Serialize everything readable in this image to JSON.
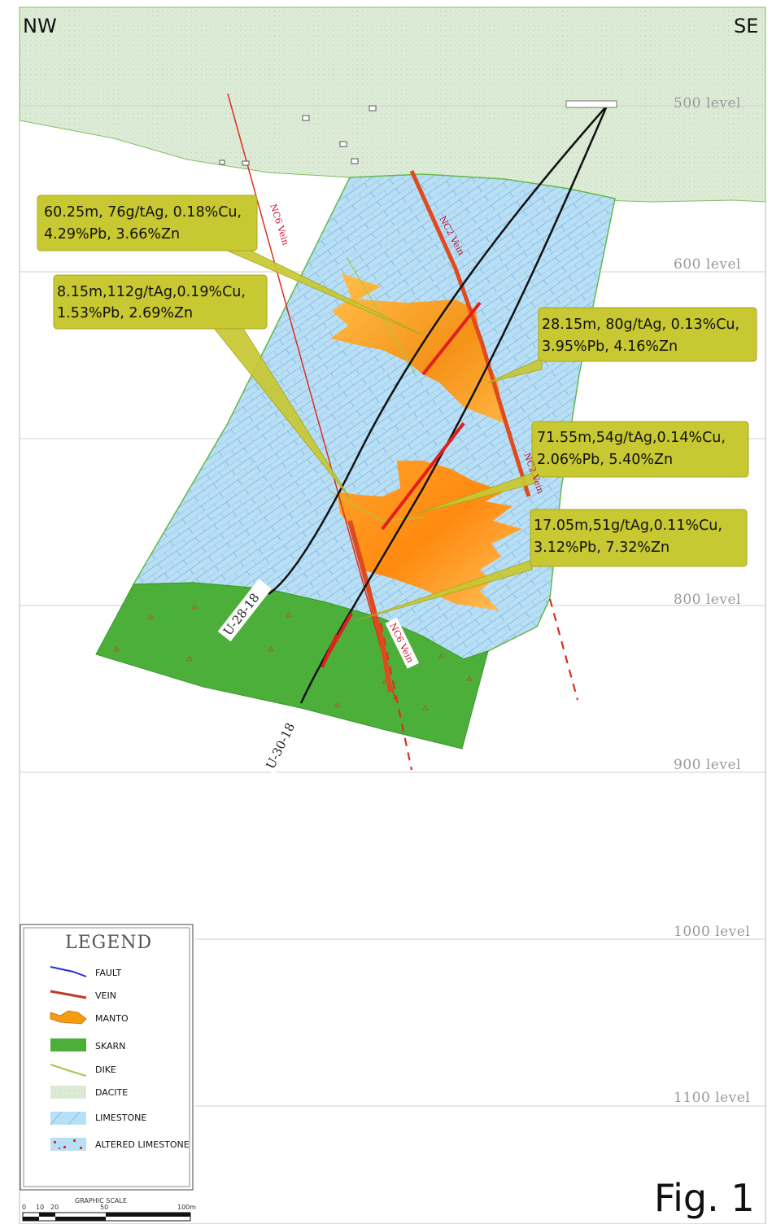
{
  "corners": {
    "left": "NW",
    "right": "SE"
  },
  "levels": [
    "500 level",
    "600 level",
    "800 level",
    "900 level",
    "1000 level",
    "1100 level"
  ],
  "veins": {
    "nc6": "NC6 Vein",
    "nc2": "NC2 Vein"
  },
  "drillholes": [
    "U-28-18",
    "U-30-18"
  ],
  "annotations": [
    {
      "line1": "60.25m, 76g/tAg, 0.18%Cu,",
      "line2": "4.29%Pb, 3.66%Zn"
    },
    {
      "line1": "8.15m,112g/tAg,0.19%Cu,",
      "line2": "1.53%Pb, 2.69%Zn"
    },
    {
      "line1": "28.15m, 80g/tAg, 0.13%Cu,",
      "line2": "3.95%Pb, 4.16%Zn"
    },
    {
      "line1": "71.55m,54g/tAg,0.14%Cu,",
      "line2": "2.06%Pb, 5.40%Zn"
    },
    {
      "line1": "17.05m,51g/tAg,0.11%Cu,",
      "line2": "3.12%Pb, 7.32%Zn"
    }
  ],
  "legend": {
    "title": "LEGEND",
    "items": [
      {
        "label": "FAULT",
        "icon": "fault-swatch",
        "color": "#2b2bd0"
      },
      {
        "label": "VEIN",
        "icon": "vein-swatch",
        "color": "#c0392b"
      },
      {
        "label": "MANTO",
        "icon": "manto-swatch",
        "color": "#f39c12"
      },
      {
        "label": "SKARN",
        "icon": "skarn-swatch",
        "color": "#4caf3a"
      },
      {
        "label": "DIKE",
        "icon": "dike-swatch",
        "color": "#a8c84a"
      },
      {
        "label": "DACITE",
        "icon": "dacite-swatch",
        "color": "#dcebd6"
      },
      {
        "label": "LIMESTONE",
        "icon": "limestone-swatch",
        "color": "#b8dff5"
      },
      {
        "label": "ALTERED LIMESTONE",
        "icon": "altered-limestone-swatch",
        "color": "#b8dff5"
      }
    ]
  },
  "scale": {
    "title": "GRAPHIC SCALE",
    "ticks": [
      "0",
      "10",
      "20",
      "50",
      "100m"
    ]
  },
  "figure_label": "Fig. 1",
  "colors": {
    "dacite": "#dcebd6",
    "limestone": "#b8dff5",
    "skarn": "#4caf3a",
    "manto": "#f39c12",
    "vein": "#d9301f",
    "callout": "#c8c832"
  }
}
